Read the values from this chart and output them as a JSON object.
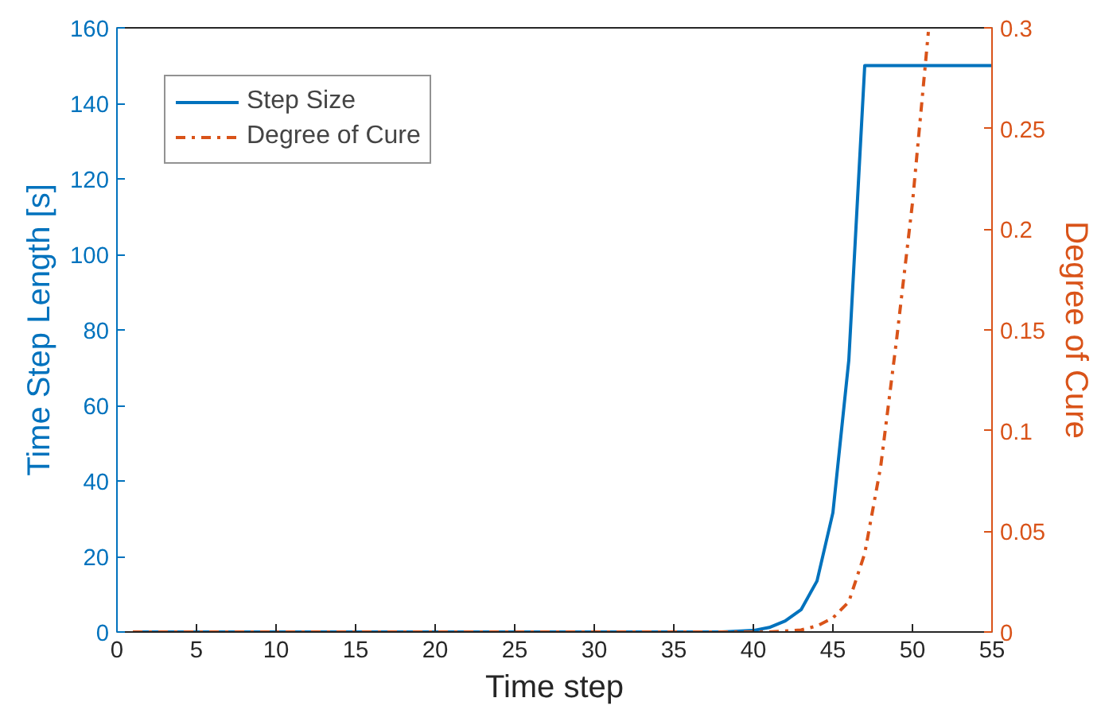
{
  "chart_data": {
    "type": "line",
    "xlabel": "Time step",
    "ylabel": "Time Step Length [s]",
    "y2label": "Degree of Cure",
    "x": [
      1,
      5,
      10,
      15,
      20,
      25,
      30,
      35,
      38,
      40,
      41,
      42,
      43,
      44,
      45,
      46,
      47,
      48,
      49,
      50,
      51,
      52,
      53,
      54,
      55
    ],
    "series": [
      {
        "name": "Step Size",
        "color": "#0072bd",
        "line_style": "solid",
        "values": [
          0,
          0,
          0,
          0,
          0,
          0,
          0,
          0,
          0,
          0.4,
          1.2,
          2.9,
          5.9,
          13.5,
          31.6,
          72,
          150,
          150,
          150,
          150,
          150,
          150,
          150,
          150,
          150
        ]
      },
      {
        "name": "Degree of Cure",
        "color": "#d95319",
        "line_style": "dashdot",
        "axis": "y2",
        "values": [
          0,
          0,
          0,
          0,
          0,
          0,
          0,
          0,
          0,
          0,
          0,
          0.0005,
          0.001,
          0.003,
          0.007,
          0.015,
          0.039,
          0.082,
          0.145,
          0.213,
          0.298,
          null,
          null,
          null,
          null
        ]
      }
    ],
    "xlim": [
      0,
      55
    ],
    "xticks": [
      0,
      5,
      10,
      15,
      20,
      25,
      30,
      35,
      40,
      45,
      50,
      55
    ],
    "ylim": [
      0,
      160
    ],
    "yticks": [
      0,
      20,
      40,
      60,
      80,
      100,
      120,
      140,
      160
    ],
    "y2lim": [
      0,
      0.3
    ],
    "y2ticks": [
      0,
      0.05,
      0.1,
      0.15,
      0.2,
      0.25,
      0.3
    ],
    "grid": false,
    "legend": "top left",
    "marker": "none"
  }
}
